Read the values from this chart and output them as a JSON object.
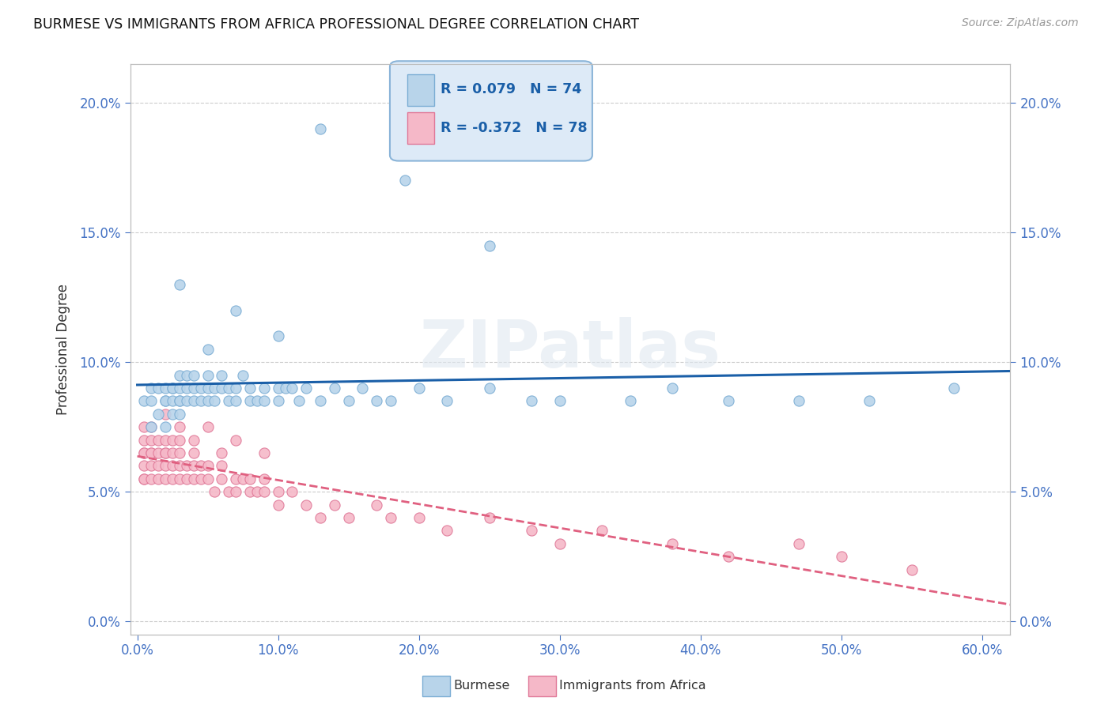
{
  "title": "BURMESE VS IMMIGRANTS FROM AFRICA PROFESSIONAL DEGREE CORRELATION CHART",
  "source": "Source: ZipAtlas.com",
  "xlabel_vals": [
    0.0,
    0.1,
    0.2,
    0.3,
    0.4,
    0.5,
    0.6
  ],
  "ylabel": "Professional Degree",
  "ylabel_vals": [
    0.0,
    0.05,
    0.1,
    0.15,
    0.2
  ],
  "xlim": [
    -0.005,
    0.62
  ],
  "ylim": [
    -0.005,
    0.215
  ],
  "burmese_R": 0.079,
  "burmese_N": 74,
  "africa_R": -0.372,
  "africa_N": 78,
  "burmese_color": "#b8d4ea",
  "burmese_edge": "#7badd4",
  "africa_color": "#f5b8c8",
  "africa_edge": "#e07898",
  "burmese_line_color": "#1a5fa8",
  "africa_line_color": "#e06080",
  "legend_box_color": "#ddeaf7",
  "legend_box_edge": "#8ab4d8",
  "background_color": "#ffffff",
  "grid_color": "#cccccc",
  "watermark": "ZIPatlas",
  "marker_size": 90,
  "burmese_x": [
    0.005,
    0.01,
    0.01,
    0.01,
    0.015,
    0.015,
    0.02,
    0.02,
    0.02,
    0.02,
    0.025,
    0.025,
    0.025,
    0.025,
    0.03,
    0.03,
    0.03,
    0.03,
    0.03,
    0.035,
    0.035,
    0.035,
    0.04,
    0.04,
    0.04,
    0.045,
    0.045,
    0.05,
    0.05,
    0.05,
    0.055,
    0.055,
    0.06,
    0.06,
    0.065,
    0.065,
    0.07,
    0.07,
    0.075,
    0.08,
    0.08,
    0.085,
    0.09,
    0.09,
    0.1,
    0.1,
    0.105,
    0.11,
    0.115,
    0.12,
    0.13,
    0.14,
    0.15,
    0.16,
    0.17,
    0.18,
    0.2,
    0.22,
    0.25,
    0.28,
    0.3,
    0.35,
    0.38,
    0.42,
    0.47,
    0.52,
    0.58,
    0.03,
    0.05,
    0.07,
    0.1,
    0.13,
    0.19,
    0.25
  ],
  "burmese_y": [
    0.085,
    0.085,
    0.09,
    0.075,
    0.09,
    0.08,
    0.085,
    0.09,
    0.085,
    0.075,
    0.09,
    0.085,
    0.08,
    0.09,
    0.09,
    0.085,
    0.095,
    0.08,
    0.085,
    0.09,
    0.085,
    0.095,
    0.085,
    0.09,
    0.095,
    0.085,
    0.09,
    0.09,
    0.085,
    0.095,
    0.09,
    0.085,
    0.095,
    0.09,
    0.085,
    0.09,
    0.09,
    0.085,
    0.095,
    0.085,
    0.09,
    0.085,
    0.09,
    0.085,
    0.09,
    0.085,
    0.09,
    0.09,
    0.085,
    0.09,
    0.085,
    0.09,
    0.085,
    0.09,
    0.085,
    0.085,
    0.09,
    0.085,
    0.09,
    0.085,
    0.085,
    0.085,
    0.09,
    0.085,
    0.085,
    0.085,
    0.09,
    0.13,
    0.105,
    0.12,
    0.11,
    0.19,
    0.17,
    0.145
  ],
  "africa_x": [
    0.005,
    0.005,
    0.005,
    0.005,
    0.005,
    0.005,
    0.005,
    0.01,
    0.01,
    0.01,
    0.01,
    0.01,
    0.01,
    0.015,
    0.015,
    0.015,
    0.015,
    0.02,
    0.02,
    0.02,
    0.02,
    0.02,
    0.025,
    0.025,
    0.025,
    0.025,
    0.03,
    0.03,
    0.03,
    0.03,
    0.035,
    0.035,
    0.04,
    0.04,
    0.04,
    0.045,
    0.045,
    0.05,
    0.05,
    0.055,
    0.06,
    0.06,
    0.065,
    0.07,
    0.07,
    0.075,
    0.08,
    0.08,
    0.085,
    0.09,
    0.09,
    0.1,
    0.1,
    0.11,
    0.12,
    0.13,
    0.14,
    0.15,
    0.17,
    0.18,
    0.2,
    0.22,
    0.25,
    0.28,
    0.3,
    0.33,
    0.38,
    0.42,
    0.47,
    0.5,
    0.55,
    0.02,
    0.03,
    0.04,
    0.05,
    0.06,
    0.07,
    0.09
  ],
  "africa_y": [
    0.065,
    0.07,
    0.06,
    0.055,
    0.075,
    0.065,
    0.055,
    0.065,
    0.07,
    0.06,
    0.055,
    0.065,
    0.075,
    0.065,
    0.055,
    0.07,
    0.06,
    0.065,
    0.07,
    0.055,
    0.06,
    0.065,
    0.055,
    0.06,
    0.07,
    0.065,
    0.06,
    0.055,
    0.065,
    0.07,
    0.055,
    0.06,
    0.06,
    0.055,
    0.065,
    0.055,
    0.06,
    0.055,
    0.06,
    0.05,
    0.055,
    0.06,
    0.05,
    0.055,
    0.05,
    0.055,
    0.05,
    0.055,
    0.05,
    0.05,
    0.055,
    0.05,
    0.045,
    0.05,
    0.045,
    0.04,
    0.045,
    0.04,
    0.045,
    0.04,
    0.04,
    0.035,
    0.04,
    0.035,
    0.03,
    0.035,
    0.03,
    0.025,
    0.03,
    0.025,
    0.02,
    0.08,
    0.075,
    0.07,
    0.075,
    0.065,
    0.07,
    0.065
  ]
}
